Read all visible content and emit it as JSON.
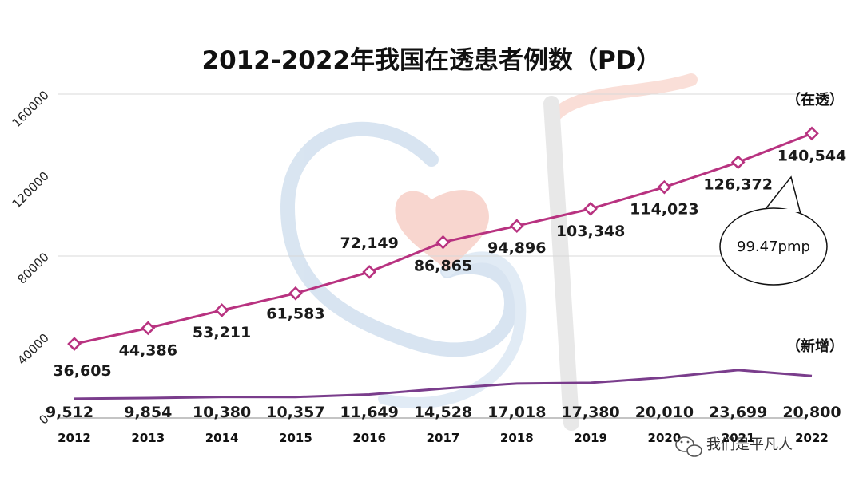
{
  "chart_data": {
    "type": "line",
    "title": "2012-2022年我国在透患者例数（PD）",
    "categories": [
      "2012",
      "2013",
      "2014",
      "2015",
      "2016",
      "2017",
      "2018",
      "2019",
      "2020",
      "2021",
      "2022"
    ],
    "ylim": [
      0,
      160000
    ],
    "yticks": [
      "0",
      "40000",
      "80000",
      "120000",
      "160000"
    ],
    "grid": true,
    "series": [
      {
        "name": "（在透）",
        "color": "#b83280",
        "marker": "diamond",
        "values": [
          36605,
          44386,
          53211,
          61583,
          72149,
          86865,
          94896,
          103348,
          114023,
          126372,
          140544
        ],
        "labels": [
          "36,605",
          "44,386",
          "53,211",
          "61,583",
          "72,149",
          "86,865",
          "94,896",
          "103,348",
          "114,023",
          "126,372",
          "140,544"
        ]
      },
      {
        "name": "（新增）",
        "color": "#7a3d8c",
        "marker": "none",
        "values": [
          9512,
          9854,
          10380,
          10357,
          11649,
          14528,
          17018,
          17380,
          20010,
          23699,
          20800
        ],
        "labels": [
          "9,512",
          "9,854",
          "10,380",
          "10,357",
          "11,649",
          "14,528",
          "17,018",
          "17,380",
          "20,010",
          "23,699",
          "20,800"
        ]
      }
    ],
    "annotation": {
      "text": "99.47pmp",
      "target": "2022"
    }
  },
  "watermark": {
    "text": "我们是平凡人",
    "icon": "wechat-icon"
  }
}
